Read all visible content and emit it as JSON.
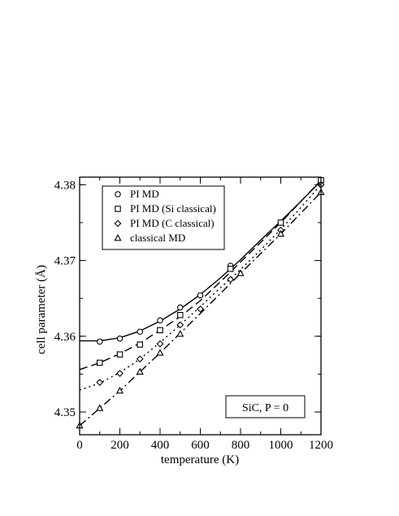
{
  "chart_data": {
    "type": "line",
    "xlabel": "temperature (K)",
    "ylabel_main": "cell parameter (",
    "ylabel_unit": "Å",
    "ylabel_close": ")",
    "xlim": [
      0,
      1200
    ],
    "ylim": [
      4.347,
      4.381
    ],
    "xticks": [
      0,
      200,
      400,
      600,
      800,
      1000,
      1200
    ],
    "yticks": [
      4.35,
      4.36,
      4.37,
      4.38
    ],
    "ytick_labels": [
      "4.35",
      "4.36",
      "4.37",
      "4.38"
    ],
    "grid": false,
    "legend_position": "top-left",
    "annotation": "SiC, P = 0",
    "series": [
      {
        "name": "PI MD",
        "marker": "circle",
        "dash": "none",
        "x": [
          100,
          200,
          300,
          400,
          500,
          600,
          750,
          1000,
          1200
        ],
        "y": [
          4.3593,
          4.3597,
          4.3606,
          4.3621,
          4.3638,
          4.3654,
          4.3693,
          4.375,
          4.3805
        ],
        "curve_x": [
          0,
          100,
          200,
          300,
          400,
          500,
          600,
          700,
          800,
          900,
          1000,
          1100,
          1200
        ],
        "curve_y": [
          4.3594,
          4.3594,
          4.3598,
          4.3607,
          4.362,
          4.3636,
          4.3655,
          4.3677,
          4.3701,
          4.3727,
          4.3752,
          4.3778,
          4.3805
        ]
      },
      {
        "name": "PI MD (Si classical)",
        "marker": "square",
        "dash": "10,5",
        "x": [
          100,
          200,
          300,
          400,
          500,
          750,
          1000,
          1200
        ],
        "y": [
          4.3565,
          4.3576,
          4.3589,
          4.3608,
          4.3628,
          4.3689,
          4.375,
          4.3806
        ],
        "curve_x": [
          0,
          100,
          200,
          300,
          400,
          500,
          600,
          700,
          800,
          900,
          1000,
          1100,
          1200
        ],
        "curve_y": [
          4.3556,
          4.3565,
          4.3577,
          4.3591,
          4.3608,
          4.3626,
          4.3647,
          4.3672,
          4.3698,
          4.3724,
          4.375,
          4.3778,
          4.3806
        ]
      },
      {
        "name": "PI MD (C classical)",
        "marker": "diamond",
        "dash": "2,4",
        "x": [
          100,
          200,
          300,
          400,
          500,
          600,
          750,
          1000,
          1200
        ],
        "y": [
          4.3539,
          4.3551,
          4.357,
          4.359,
          4.3615,
          4.3636,
          4.3675,
          4.374,
          4.38
        ],
        "curve_x": [
          0,
          100,
          200,
          300,
          400,
          500,
          600,
          700,
          800,
          900,
          1000,
          1100,
          1200
        ],
        "curve_y": [
          4.3529,
          4.3538,
          4.3552,
          4.357,
          4.3592,
          4.3615,
          4.3639,
          4.3664,
          4.3688,
          4.3714,
          4.3741,
          4.377,
          4.38
        ]
      },
      {
        "name": "classical MD",
        "marker": "triangle",
        "dash": "10,4,2,4",
        "x": [
          0,
          100,
          200,
          300,
          400,
          500,
          800,
          1000,
          1200
        ],
        "y": [
          4.3482,
          4.3505,
          4.3528,
          4.3553,
          4.3578,
          4.3603,
          4.3683,
          4.3735,
          4.379
        ],
        "curve_x": [
          0,
          200,
          400,
          600,
          800,
          1000,
          1200
        ],
        "curve_y": [
          4.3482,
          4.3528,
          4.3578,
          4.363,
          4.3683,
          4.3735,
          4.379
        ]
      }
    ]
  }
}
